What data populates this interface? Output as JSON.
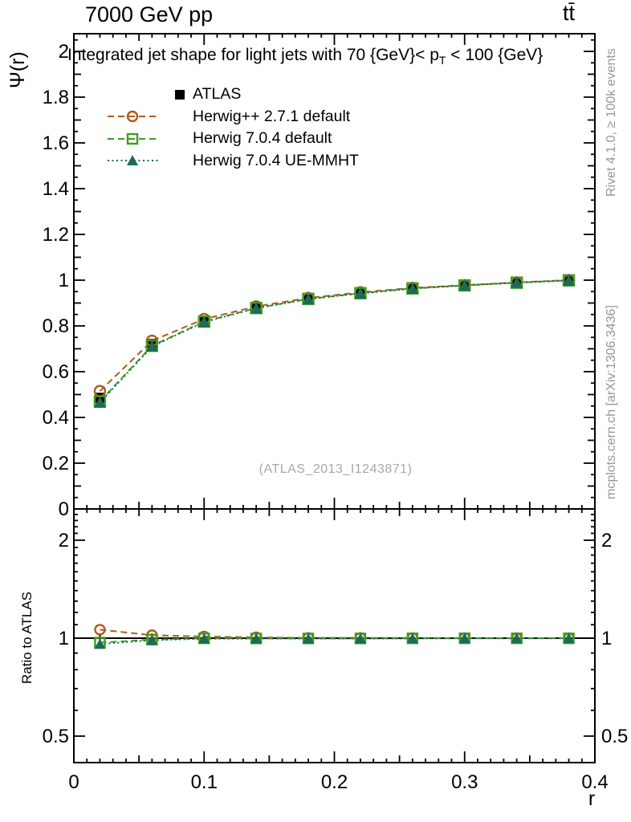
{
  "header": {
    "left": "7000 GeV pp",
    "right": "tt̄"
  },
  "title": {
    "pre": "Integrated jet shape for light jets with 70 {GeV}< p",
    "sub": "T",
    "post": " < 100 {GeV}"
  },
  "side_notes": {
    "top": "Rivet 4.1.0, ≥ 100k events",
    "bottom": "mcplots.cern.ch [arXiv:1306.3436]"
  },
  "watermark": "(ATLAS_2013_I1243871)",
  "colors": {
    "atlas": "#000000",
    "herwigpp": "#b05a1e",
    "herwig7": "#3c9e21",
    "herwig7ue": "#1d6a55",
    "frame": "#000000",
    "note_gray": "#969696",
    "watermark_gray": "#a9a9a9"
  },
  "chart_data": [
    {
      "type": "line",
      "panel": "main",
      "title": "Integrated jet shape for light jets with 70 {GeV}< p_T < 100 {GeV}",
      "xlabel": "r",
      "ylabel": "Ψ(r)",
      "xlim": [
        0,
        0.4
      ],
      "ylim": [
        0,
        2.077
      ],
      "xticklabels": [
        "0",
        "0.1",
        "0.2",
        "0.3",
        "0.4"
      ],
      "yticklabels": [
        "0",
        "0.2",
        "0.4",
        "0.6",
        "0.8",
        "1",
        "1.2",
        "1.4",
        "1.6",
        "1.8",
        "2"
      ],
      "x": [
        0.02,
        0.06,
        0.1,
        0.14,
        0.18,
        0.22,
        0.26,
        0.3,
        0.34,
        0.38
      ],
      "series": [
        {
          "name": "ATLAS",
          "marker": "filled-square",
          "line": "none",
          "color": "#000000",
          "values": [
            0.485,
            0.72,
            0.82,
            0.88,
            0.92,
            0.945,
            0.965,
            0.978,
            0.99,
            1.0
          ]
        },
        {
          "name": "Herwig++ 2.7.1 default",
          "marker": "open-circle",
          "line": "dashed",
          "color": "#b05a1e",
          "values": [
            0.515,
            0.735,
            0.83,
            0.885,
            0.922,
            0.947,
            0.966,
            0.978,
            0.99,
            1.0
          ]
        },
        {
          "name": "Herwig 7.0.4 default",
          "marker": "open-square",
          "line": "dashed",
          "color": "#3c9e21",
          "values": [
            0.47,
            0.713,
            0.819,
            0.878,
            0.918,
            0.943,
            0.964,
            0.977,
            0.989,
            0.999
          ]
        },
        {
          "name": "Herwig 7.0.4 UE-MMHT",
          "marker": "filled-triangle",
          "line": "dotted",
          "color": "#1d6a55",
          "values": [
            0.465,
            0.71,
            0.817,
            0.877,
            0.917,
            0.942,
            0.963,
            0.977,
            0.989,
            0.999
          ]
        }
      ]
    },
    {
      "type": "line",
      "panel": "ratio",
      "ylabel": "Ratio to ATLAS",
      "yscale": "log",
      "ylim": [
        0.414,
        2.495
      ],
      "yticklabels": [
        "0.5",
        "1",
        "2"
      ],
      "reference_line": 1.0,
      "x": [
        0.02,
        0.06,
        0.1,
        0.14,
        0.18,
        0.22,
        0.26,
        0.3,
        0.34,
        0.38
      ],
      "series": [
        {
          "name": "Herwig++ 2.7.1 default",
          "marker": "open-circle",
          "line": "dashed",
          "color": "#b05a1e",
          "values": [
            1.062,
            1.021,
            1.012,
            1.006,
            1.002,
            1.002,
            1.001,
            1.0,
            1.0,
            1.0
          ]
        },
        {
          "name": "Herwig 7.0.4 default",
          "marker": "open-square",
          "line": "dashed",
          "color": "#3c9e21",
          "values": [
            0.969,
            0.99,
            0.999,
            0.998,
            0.998,
            0.998,
            0.999,
            0.999,
            0.999,
            0.999
          ]
        },
        {
          "name": "Herwig 7.0.4 UE-MMHT",
          "marker": "filled-triangle",
          "line": "dotted",
          "color": "#1d6a55",
          "values": [
            0.959,
            0.986,
            0.996,
            0.997,
            0.997,
            0.997,
            0.998,
            0.999,
            0.999,
            0.999
          ]
        }
      ]
    }
  ]
}
